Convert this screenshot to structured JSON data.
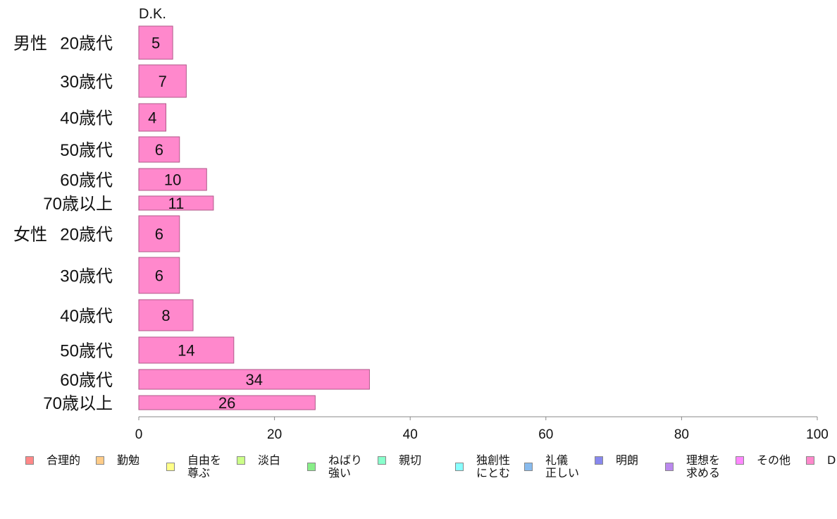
{
  "chart_data": {
    "type": "bar",
    "orientation": "horizontal",
    "stacked": true,
    "title": "D.K.",
    "groups": [
      {
        "label": "男性",
        "start": 0
      },
      {
        "label": "女性",
        "start": 6
      }
    ],
    "categories": [
      "20歳代",
      "30歳代",
      "40歳代",
      "50歳代",
      "60歳代",
      "70歳以上",
      "20歳代",
      "30歳代",
      "40歳代",
      "50歳代",
      "60歳代",
      "70歳以上"
    ],
    "series": [
      {
        "name": "合理的",
        "color": "#ff8888",
        "values": [
          0,
          0,
          0,
          0,
          0,
          0,
          0,
          0,
          0,
          0,
          0,
          0
        ]
      },
      {
        "name": "勤勉",
        "color": "#ffcc88",
        "values": [
          0,
          0,
          0,
          0,
          0,
          0,
          0,
          0,
          0,
          0,
          0,
          0
        ]
      },
      {
        "name": "自由を\n尊ぶ",
        "color": "#ffff88",
        "values": [
          0,
          0,
          0,
          0,
          0,
          0,
          0,
          0,
          0,
          0,
          0,
          0
        ]
      },
      {
        "name": "淡白",
        "color": "#ccff88",
        "values": [
          0,
          0,
          0,
          0,
          0,
          0,
          0,
          0,
          0,
          0,
          0,
          0
        ]
      },
      {
        "name": "ねばり\n強い",
        "color": "#88ee88",
        "values": [
          0,
          0,
          0,
          0,
          0,
          0,
          0,
          0,
          0,
          0,
          0,
          0
        ]
      },
      {
        "name": "親切",
        "color": "#88ffcc",
        "values": [
          0,
          0,
          0,
          0,
          0,
          0,
          0,
          0,
          0,
          0,
          0,
          0
        ]
      },
      {
        "name": "独創性\nにとむ",
        "color": "#88ffff",
        "values": [
          0,
          0,
          0,
          0,
          0,
          0,
          0,
          0,
          0,
          0,
          0,
          0
        ]
      },
      {
        "name": "礼儀\n正しい",
        "color": "#88bbee",
        "values": [
          0,
          0,
          0,
          0,
          0,
          0,
          0,
          0,
          0,
          0,
          0,
          0
        ]
      },
      {
        "name": "明朗",
        "color": "#8888ee",
        "values": [
          0,
          0,
          0,
          0,
          0,
          0,
          0,
          0,
          0,
          0,
          0,
          0
        ]
      },
      {
        "name": "理想を\n求める",
        "color": "#bb88ee",
        "values": [
          0,
          0,
          0,
          0,
          0,
          0,
          0,
          0,
          0,
          0,
          0,
          0
        ]
      },
      {
        "name": "その他",
        "color": "#ff88ff",
        "values": [
          0,
          0,
          0,
          0,
          0,
          0,
          0,
          0,
          0,
          0,
          0,
          0
        ]
      },
      {
        "name": "D",
        "color": "#ff88cc",
        "values": [
          5,
          7,
          4,
          6,
          10,
          11,
          6,
          6,
          8,
          14,
          34,
          26
        ]
      }
    ],
    "xlim": [
      0,
      100
    ],
    "xticks": [
      0,
      20,
      40,
      60,
      80,
      100
    ],
    "grid": false,
    "legend_position": "bottom"
  }
}
